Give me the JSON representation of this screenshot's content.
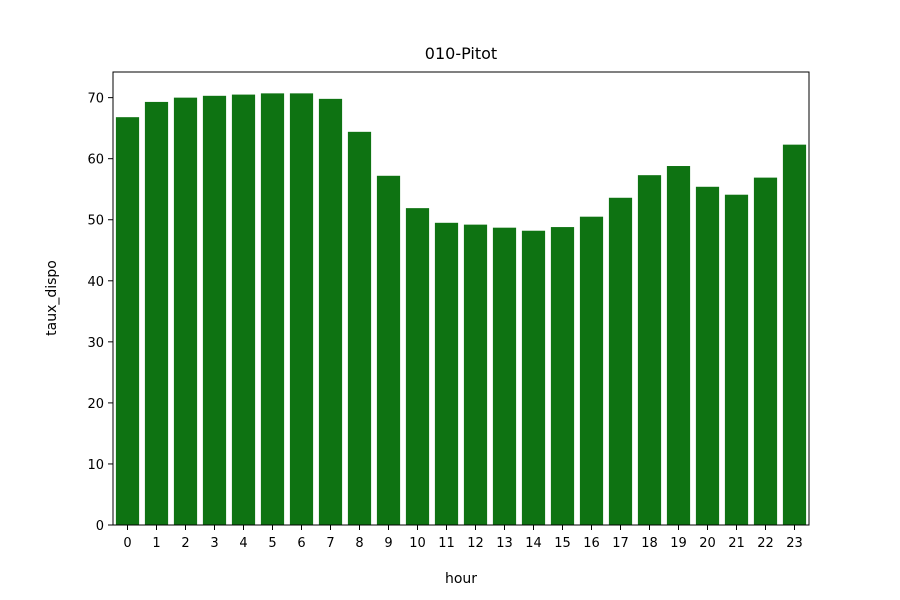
{
  "chart_data": {
    "type": "bar",
    "title": "010-Pitot",
    "xlabel": "hour",
    "ylabel": "taux_dispo",
    "categories": [
      "0",
      "1",
      "2",
      "3",
      "4",
      "5",
      "6",
      "7",
      "8",
      "9",
      "10",
      "11",
      "12",
      "13",
      "14",
      "15",
      "16",
      "17",
      "18",
      "19",
      "20",
      "21",
      "22",
      "23"
    ],
    "values": [
      66.8,
      69.3,
      70.0,
      70.3,
      70.5,
      70.7,
      70.7,
      69.8,
      64.4,
      57.2,
      51.9,
      49.5,
      49.2,
      48.7,
      48.2,
      48.8,
      50.5,
      53.6,
      57.3,
      58.8,
      55.4,
      54.1,
      56.9,
      62.3
    ],
    "ylim": [
      0,
      74.2
    ],
    "yticks": [
      0,
      10,
      20,
      30,
      40,
      50,
      60,
      70
    ],
    "bar_color": "#0e7312",
    "grid": false,
    "legend": "none"
  }
}
